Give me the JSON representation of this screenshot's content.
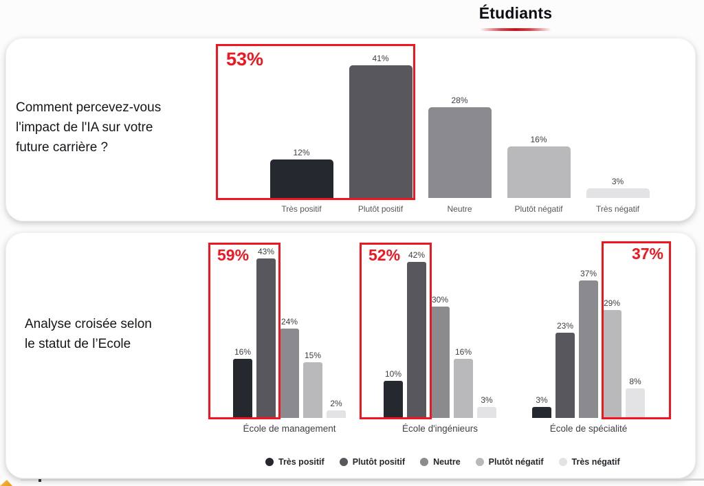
{
  "header": {
    "title": "Étudiants"
  },
  "panel_top": {
    "question_lines": [
      "Comment percevez-vous",
      "l'impact de l'IA sur votre",
      "future carrière ?"
    ],
    "highlight_label": "53%"
  },
  "panel_bottom": {
    "title_lines": [
      "Analyse croisée selon",
      "le statut de l’Ecole"
    ],
    "highlight_labels": [
      "59%",
      "52%",
      "37%"
    ]
  },
  "legend": [
    {
      "label": "Très positif",
      "color": "#26282f"
    },
    {
      "label": "Plutôt positif",
      "color": "#57575d"
    },
    {
      "label": "Neutre",
      "color": "#8a8a8f"
    },
    {
      "label": "Plutôt négatif",
      "color": "#b9b9bc"
    },
    {
      "label": "Très négatif",
      "color": "#e3e3e5"
    }
  ],
  "colors": {
    "accent_red": "#f2151f",
    "bar_palette": [
      "#26282f",
      "#57575d",
      "#8a8a8f",
      "#b9b9bc",
      "#e3e3e5"
    ]
  },
  "chart_data": [
    {
      "type": "bar",
      "title": "Comment percevez-vous l'impact de l'IA sur votre future carrière ?",
      "categories": [
        "Très positif",
        "Plutôt positif",
        "Neutre",
        "Plutôt négatif",
        "Très négatif"
      ],
      "values": [
        12,
        41,
        28,
        16,
        3
      ],
      "value_labels": [
        "12%",
        "41%",
        "28%",
        "16%",
        "3%"
      ],
      "highlight": {
        "label": "53%",
        "covers": [
          "Très positif",
          "Plutôt positif"
        ],
        "sum_of": [
          12,
          41
        ]
      },
      "ylim": [
        0,
        45
      ],
      "grid": false,
      "legend_position": "none"
    },
    {
      "type": "bar",
      "title": "Analyse croisée selon le statut de l’Ecole",
      "series_legend": [
        "Très positif",
        "Plutôt positif",
        "Neutre",
        "Plutôt négatif",
        "Très négatif"
      ],
      "groups": [
        {
          "category": "École de management",
          "values": [
            16,
            43,
            24,
            15,
            2
          ],
          "value_labels": [
            "16%",
            "43%",
            "24%",
            "15%",
            "2%"
          ],
          "highlight": {
            "label": "59%",
            "covers": [
              "Très positif",
              "Plutôt positif"
            ]
          }
        },
        {
          "category": "École d'ingénieurs",
          "values": [
            10,
            42,
            30,
            16,
            3
          ],
          "value_labels": [
            "10%",
            "42%",
            "30%",
            "16%",
            "3%"
          ],
          "highlight": {
            "label": "52%",
            "covers": [
              "Très positif",
              "Plutôt positif"
            ]
          }
        },
        {
          "category": "École de spécialité",
          "values": [
            3,
            23,
            37,
            29,
            8
          ],
          "value_labels": [
            "3%",
            "23%",
            "37%",
            "29%",
            "8%"
          ],
          "highlight": {
            "label": "37%",
            "covers": [
              "Plutôt négatif",
              "Très négatif"
            ]
          }
        }
      ],
      "ylim": [
        0,
        45
      ],
      "grid": false,
      "legend_position": "bottom"
    }
  ]
}
